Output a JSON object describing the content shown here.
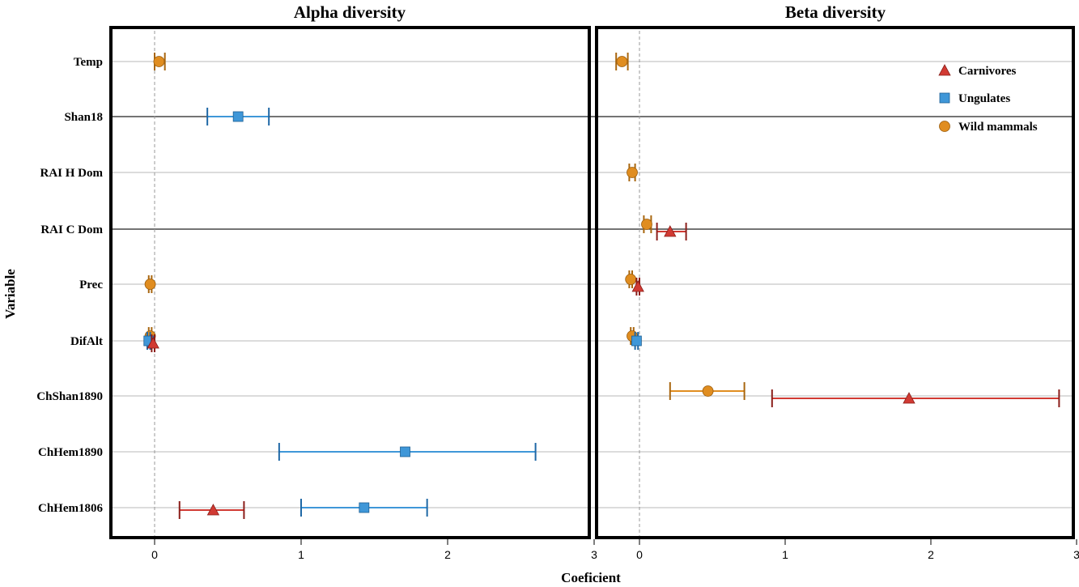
{
  "chart_data": {
    "type": "scatter",
    "subtype": "coefficient-plot-with-error-bars",
    "ylabel": "Variable",
    "xlabel": "Coeficient",
    "variables": [
      "Temp",
      "Shan18",
      "RAI H Dom",
      "RAI C Dom",
      "Prec",
      "DifAlt",
      "ChShan1890",
      "ChHem1890",
      "ChHem1806"
    ],
    "series_names": [
      "Carnivores",
      "Ungulates",
      "Wild mammals"
    ],
    "colors": {
      "Carnivores": "#d13a33",
      "Ungulates": "#3f97d8",
      "Wild mammals": "#e08d20"
    },
    "legend_position": "top-right",
    "grid": "horizontal",
    "panels": [
      {
        "title": "Alpha diversity",
        "xlim": [
          -0.3,
          3.0
        ],
        "xticks": [
          "0",
          "1",
          "2",
          "3"
        ],
        "points": [
          {
            "variable": "Temp",
            "series": "Wild mammals",
            "x": 0.03,
            "lo": 0.0,
            "hi": 0.07
          },
          {
            "variable": "Shan18",
            "series": "Ungulates",
            "x": 0.57,
            "lo": 0.36,
            "hi": 0.78
          },
          {
            "variable": "Prec",
            "series": "Wild mammals",
            "x": -0.03,
            "lo": -0.04,
            "hi": -0.02
          },
          {
            "variable": "DifAlt",
            "series": "Wild mammals",
            "x": -0.03,
            "lo": -0.04,
            "hi": -0.02
          },
          {
            "variable": "DifAlt",
            "series": "Ungulates",
            "x": -0.04,
            "lo": -0.05,
            "hi": -0.03
          },
          {
            "variable": "DifAlt",
            "series": "Carnivores",
            "x": -0.01,
            "lo": -0.02,
            "hi": 0.0
          },
          {
            "variable": "ChHem1890",
            "series": "Ungulates",
            "x": 1.71,
            "lo": 0.85,
            "hi": 2.6
          },
          {
            "variable": "ChHem1806",
            "series": "Ungulates",
            "x": 1.43,
            "lo": 1.0,
            "hi": 1.86
          },
          {
            "variable": "ChHem1806",
            "series": "Carnivores",
            "x": 0.4,
            "lo": 0.17,
            "hi": 0.61
          }
        ]
      },
      {
        "title": "Beta diversity",
        "xlim": [
          -0.3,
          3.0
        ],
        "xticks": [
          "0",
          "1",
          "2",
          "3"
        ],
        "points": [
          {
            "variable": "Temp",
            "series": "Wild mammals",
            "x": -0.12,
            "lo": -0.16,
            "hi": -0.08
          },
          {
            "variable": "RAI H Dom",
            "series": "Wild mammals",
            "x": -0.05,
            "lo": -0.07,
            "hi": -0.03
          },
          {
            "variable": "RAI C Dom",
            "series": "Wild mammals",
            "x": 0.05,
            "lo": 0.03,
            "hi": 0.08
          },
          {
            "variable": "RAI C Dom",
            "series": "Carnivores",
            "x": 0.21,
            "lo": 0.12,
            "hi": 0.32
          },
          {
            "variable": "Prec",
            "series": "Wild mammals",
            "x": -0.06,
            "lo": -0.07,
            "hi": -0.05
          },
          {
            "variable": "Prec",
            "series": "Carnivores",
            "x": -0.01,
            "lo": -0.02,
            "hi": 0.0
          },
          {
            "variable": "DifAlt",
            "series": "Wild mammals",
            "x": -0.05,
            "lo": -0.06,
            "hi": -0.04
          },
          {
            "variable": "DifAlt",
            "series": "Ungulates",
            "x": -0.02,
            "lo": -0.03,
            "hi": -0.01
          },
          {
            "variable": "ChShan1890",
            "series": "Wild mammals",
            "x": 0.47,
            "lo": 0.21,
            "hi": 0.72
          },
          {
            "variable": "ChShan1890",
            "series": "Carnivores",
            "x": 1.85,
            "lo": 0.91,
            "hi": 2.88
          }
        ]
      }
    ]
  }
}
